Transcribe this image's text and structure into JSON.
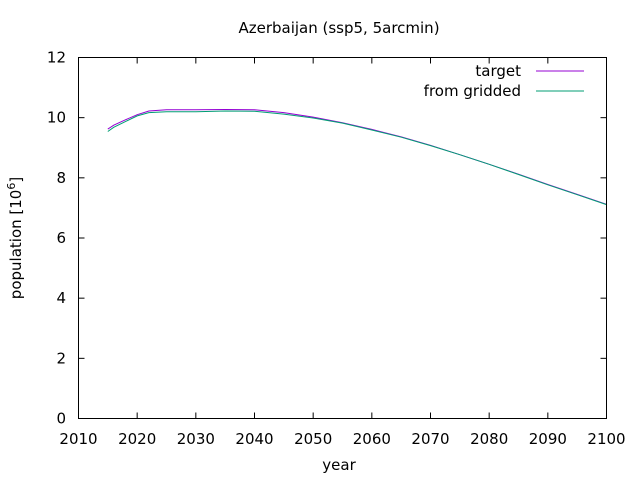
{
  "chart_data": {
    "type": "line",
    "title": "Azerbaijan (ssp5, 5arcmin)",
    "xlabel": "year",
    "ylabel": {
      "text": "population [10",
      "exp": "6",
      "suffix": "]"
    },
    "xlim": [
      2010,
      2100
    ],
    "ylim": [
      0,
      12
    ],
    "xticks": [
      2010,
      2020,
      2030,
      2040,
      2050,
      2060,
      2070,
      2080,
      2090,
      2100
    ],
    "yticks": [
      0,
      2,
      4,
      6,
      8,
      10,
      12
    ],
    "grid": false,
    "legend_position": "top-right",
    "series": [
      {
        "name": "target",
        "color": "#9400d3",
        "x": [
          2015,
          2016,
          2018,
          2020,
          2022,
          2025,
          2030,
          2035,
          2040,
          2045,
          2050,
          2055,
          2060,
          2065,
          2070,
          2075,
          2080,
          2085,
          2090,
          2095,
          2100
        ],
        "y": [
          9.62,
          9.75,
          9.93,
          10.1,
          10.22,
          10.26,
          10.26,
          10.27,
          10.26,
          10.17,
          10.02,
          9.83,
          9.61,
          9.36,
          9.08,
          8.77,
          8.45,
          8.12,
          7.78,
          7.45,
          7.12
        ]
      },
      {
        "name": "from gridded",
        "color": "#009e73",
        "x": [
          2015,
          2016,
          2018,
          2020,
          2022,
          2025,
          2030,
          2035,
          2040,
          2045,
          2050,
          2055,
          2060,
          2065,
          2070,
          2075,
          2080,
          2085,
          2090,
          2095,
          2100
        ],
        "y": [
          9.54,
          9.68,
          9.87,
          10.06,
          10.17,
          10.2,
          10.2,
          10.22,
          10.21,
          10.12,
          9.99,
          9.82,
          9.59,
          9.35,
          9.07,
          8.77,
          8.45,
          8.11,
          7.77,
          7.44,
          7.11
        ]
      }
    ]
  }
}
